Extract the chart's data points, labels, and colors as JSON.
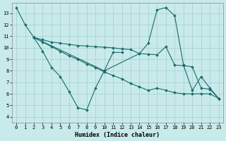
{
  "bg_color": "#c8eaea",
  "grid_color": "#a8cccc",
  "line_color": "#1a6b6b",
  "xlabel": "Humidex (Indice chaleur)",
  "xlim": [
    -0.5,
    23.5
  ],
  "ylim": [
    3.5,
    13.9
  ],
  "yticks": [
    4,
    5,
    6,
    7,
    8,
    9,
    10,
    11,
    12,
    13
  ],
  "xticks": [
    0,
    1,
    2,
    3,
    4,
    5,
    6,
    7,
    8,
    9,
    10,
    11,
    12,
    13,
    14,
    15,
    16,
    17,
    18,
    19,
    20,
    21,
    22,
    23
  ],
  "series": [
    {
      "x": [
        0,
        1,
        2,
        3,
        4,
        5,
        6,
        7,
        8,
        9,
        10,
        11,
        12
      ],
      "y": [
        13.5,
        12.0,
        10.9,
        9.7,
        8.3,
        7.5,
        6.2,
        4.8,
        4.6,
        6.5,
        8.0,
        9.6,
        9.6
      ]
    },
    {
      "x": [
        2,
        10,
        14,
        15,
        16,
        17,
        18,
        19,
        20,
        21,
        22,
        23
      ],
      "y": [
        10.9,
        8.0,
        9.5,
        10.4,
        13.3,
        13.5,
        12.8,
        8.5,
        6.3,
        7.5,
        6.5,
        5.6
      ]
    },
    {
      "x": [
        2,
        3,
        4,
        5,
        6,
        7,
        8,
        9,
        10,
        11,
        12,
        13,
        14,
        15,
        16,
        17,
        18,
        19,
        20,
        21,
        22,
        23
      ],
      "y": [
        10.9,
        10.7,
        10.5,
        10.4,
        10.3,
        10.2,
        10.15,
        10.1,
        10.05,
        10.0,
        9.9,
        9.85,
        9.5,
        9.45,
        9.4,
        10.1,
        8.5,
        8.45,
        8.35,
        6.5,
        6.4,
        5.6
      ]
    },
    {
      "x": [
        2,
        3,
        4,
        5,
        6,
        7,
        8,
        9,
        10,
        11,
        12,
        13,
        14,
        15,
        16,
        17,
        18,
        19,
        20,
        21,
        22,
        23
      ],
      "y": [
        10.9,
        10.5,
        10.1,
        9.7,
        9.3,
        9.0,
        8.6,
        8.3,
        7.9,
        7.6,
        7.3,
        6.9,
        6.6,
        6.3,
        6.5,
        6.3,
        6.1,
        6.0,
        6.0,
        6.0,
        6.0,
        5.6
      ]
    }
  ]
}
